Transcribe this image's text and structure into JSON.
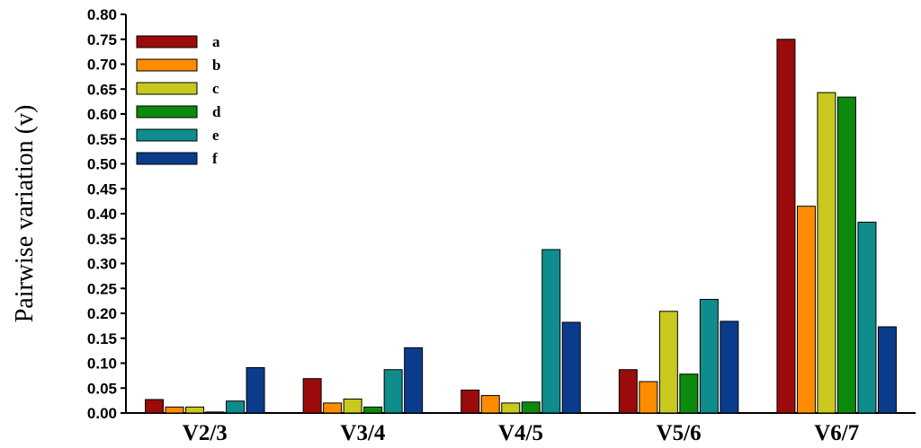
{
  "chart_data": {
    "type": "bar",
    "title": "",
    "xlabel": "",
    "ylabel": "Pairwise variation (v)",
    "categories": [
      "V2/3",
      "V3/4",
      "V4/5",
      "V5/6",
      "V6/7"
    ],
    "ylim": [
      0,
      0.8
    ],
    "yticks": [
      "0.00",
      "0.05",
      "0.10",
      "0.15",
      "0.20",
      "0.25",
      "0.30",
      "0.35",
      "0.40",
      "0.45",
      "0.50",
      "0.55",
      "0.60",
      "0.65",
      "0.70",
      "0.75",
      "0.80"
    ],
    "grid": false,
    "legend_position": "top-left",
    "series": [
      {
        "name": "a",
        "color": "#9b0b0b",
        "values": [
          0.027,
          0.069,
          0.046,
          0.087,
          0.75
        ]
      },
      {
        "name": "b",
        "color": "#ff8c00",
        "values": [
          0.012,
          0.02,
          0.035,
          0.063,
          0.415
        ]
      },
      {
        "name": "c",
        "color": "#c8c81e",
        "values": [
          0.012,
          0.028,
          0.02,
          0.204,
          0.643
        ]
      },
      {
        "name": "d",
        "color": "#0b8a0b",
        "values": [
          0.002,
          0.012,
          0.022,
          0.078,
          0.634
        ]
      },
      {
        "name": "e",
        "color": "#0f8c8c",
        "values": [
          0.024,
          0.087,
          0.328,
          0.228,
          0.383
        ]
      },
      {
        "name": "f",
        "color": "#0b3c8c",
        "values": [
          0.091,
          0.131,
          0.182,
          0.184,
          0.173
        ]
      }
    ]
  }
}
